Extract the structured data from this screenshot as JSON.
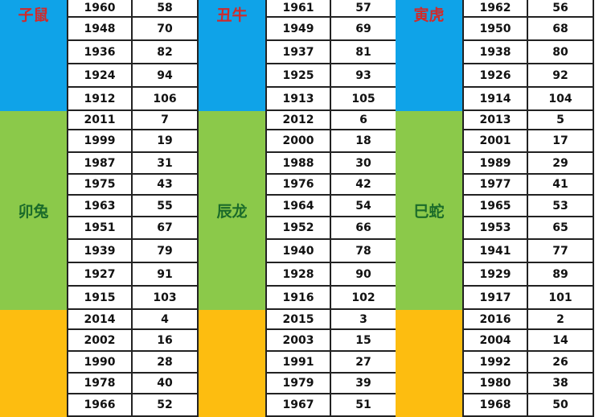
{
  "colors": {
    "rat_ox_tiger": "#0fa3e8",
    "rabbit_dragon_snake": "#8bc94a",
    "next": "#fdbd10",
    "red_label": "#d02a2a",
    "green_label": "#1b6b2a"
  },
  "groups": [
    {
      "blocks": [
        {
          "label": "子鼠",
          "color": "#0fa3e8",
          "text_color": "#d02a2a",
          "rows": [
            [
              "1960",
              "58"
            ],
            [
              "1948",
              "70"
            ],
            [
              "1936",
              "82"
            ],
            [
              "1924",
              "94"
            ],
            [
              "1912",
              "106"
            ]
          ]
        },
        {
          "label": "卯兔",
          "color": "#8bc94a",
          "text_color": "#1b6b2a",
          "rows": [
            [
              "2011",
              "7"
            ],
            [
              "1999",
              "19"
            ],
            [
              "1987",
              "31"
            ],
            [
              "1975",
              "43"
            ],
            [
              "1963",
              "55"
            ],
            [
              "1951",
              "67"
            ],
            [
              "1939",
              "79"
            ],
            [
              "1927",
              "91"
            ],
            [
              "1915",
              "103"
            ]
          ]
        },
        {
          "label": "",
          "color": "#fdbd10",
          "text_color": "#d02a2a",
          "rows": [
            [
              "2014",
              "4"
            ],
            [
              "2002",
              "16"
            ],
            [
              "1990",
              "28"
            ],
            [
              "1978",
              "40"
            ],
            [
              "1966",
              "52"
            ]
          ]
        }
      ]
    },
    {
      "blocks": [
        {
          "label": "丑牛",
          "color": "#0fa3e8",
          "text_color": "#d02a2a",
          "rows": [
            [
              "1961",
              "57"
            ],
            [
              "1949",
              "69"
            ],
            [
              "1937",
              "81"
            ],
            [
              "1925",
              "93"
            ],
            [
              "1913",
              "105"
            ]
          ]
        },
        {
          "label": "辰龙",
          "color": "#8bc94a",
          "text_color": "#1b6b2a",
          "rows": [
            [
              "2012",
              "6"
            ],
            [
              "2000",
              "18"
            ],
            [
              "1988",
              "30"
            ],
            [
              "1976",
              "42"
            ],
            [
              "1964",
              "54"
            ],
            [
              "1952",
              "66"
            ],
            [
              "1940",
              "78"
            ],
            [
              "1928",
              "90"
            ],
            [
              "1916",
              "102"
            ]
          ]
        },
        {
          "label": "",
          "color": "#fdbd10",
          "text_color": "#d02a2a",
          "rows": [
            [
              "2015",
              "3"
            ],
            [
              "2003",
              "15"
            ],
            [
              "1991",
              "27"
            ],
            [
              "1979",
              "39"
            ],
            [
              "1967",
              "51"
            ]
          ]
        }
      ]
    },
    {
      "blocks": [
        {
          "label": "寅虎",
          "color": "#0fa3e8",
          "text_color": "#d02a2a",
          "rows": [
            [
              "1962",
              "56"
            ],
            [
              "1950",
              "68"
            ],
            [
              "1938",
              "80"
            ],
            [
              "1926",
              "92"
            ],
            [
              "1914",
              "104"
            ]
          ]
        },
        {
          "label": "巳蛇",
          "color": "#8bc94a",
          "text_color": "#1b6b2a",
          "rows": [
            [
              "2013",
              "5"
            ],
            [
              "2001",
              "17"
            ],
            [
              "1989",
              "29"
            ],
            [
              "1977",
              "41"
            ],
            [
              "1965",
              "53"
            ],
            [
              "1953",
              "65"
            ],
            [
              "1941",
              "77"
            ],
            [
              "1929",
              "89"
            ],
            [
              "1917",
              "101"
            ]
          ]
        },
        {
          "label": "",
          "color": "#fdbd10",
          "text_color": "#d02a2a",
          "rows": [
            [
              "2016",
              "2"
            ],
            [
              "2004",
              "14"
            ],
            [
              "1992",
              "26"
            ],
            [
              "1980",
              "38"
            ],
            [
              "1968",
              "50"
            ]
          ]
        }
      ]
    }
  ]
}
